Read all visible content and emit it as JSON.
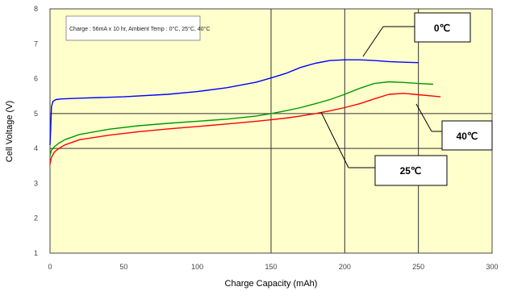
{
  "chart_data": {
    "type": "line",
    "title": "",
    "xlabel": "Charge Capacity (mAh)",
    "ylabel": "Cell Voltage (V)",
    "xlim": [
      0,
      300
    ],
    "ylim": [
      1,
      8
    ],
    "xticks": [
      0,
      50,
      100,
      150,
      200,
      250,
      300
    ],
    "yticks": [
      1,
      2,
      3,
      4,
      5,
      6,
      7,
      8
    ],
    "xtick_labels": [
      "0",
      "50",
      "100",
      "150",
      "200",
      "250",
      "300"
    ],
    "ytick_labels": [
      "1",
      "2",
      "3",
      "4",
      "5",
      "6",
      "7",
      "8"
    ],
    "grid": "major gridlines at x = 150, 200, 250 and y = 4, 5",
    "background": "#ffffcc",
    "note": "Charge : 56mA x 10 hr, Ambient Temp : 0°C, 25°C, 40°C",
    "series": [
      {
        "name": "0℃",
        "color": "#0000ff",
        "x": [
          0,
          0.5,
          1,
          2,
          4,
          8,
          20,
          50,
          80,
          100,
          120,
          140,
          150,
          160,
          170,
          180,
          190,
          200,
          210,
          220,
          230,
          240,
          250
        ],
        "y": [
          4.1,
          4.6,
          5.2,
          5.35,
          5.4,
          5.42,
          5.44,
          5.48,
          5.55,
          5.63,
          5.74,
          5.9,
          6.02,
          6.15,
          6.32,
          6.44,
          6.52,
          6.54,
          6.54,
          6.52,
          6.49,
          6.47,
          6.46
        ]
      },
      {
        "name": "25℃",
        "color": "#009900",
        "x": [
          0,
          1,
          3,
          6,
          10,
          20,
          40,
          60,
          80,
          100,
          120,
          140,
          150,
          160,
          170,
          180,
          190,
          200,
          210,
          220,
          230,
          240,
          250,
          260
        ],
        "y": [
          3.8,
          3.95,
          4.05,
          4.15,
          4.25,
          4.4,
          4.55,
          4.65,
          4.72,
          4.78,
          4.84,
          4.93,
          5.0,
          5.08,
          5.17,
          5.28,
          5.4,
          5.55,
          5.72,
          5.86,
          5.91,
          5.89,
          5.86,
          5.84
        ]
      },
      {
        "name": "40℃",
        "color": "#ff0000",
        "x": [
          0,
          1,
          3,
          6,
          10,
          20,
          40,
          60,
          80,
          100,
          120,
          140,
          150,
          160,
          170,
          180,
          190,
          200,
          210,
          220,
          230,
          240,
          250,
          260,
          265
        ],
        "y": [
          3.55,
          3.75,
          3.9,
          4.0,
          4.1,
          4.25,
          4.38,
          4.48,
          4.56,
          4.63,
          4.7,
          4.78,
          4.82,
          4.87,
          4.93,
          5.0,
          5.08,
          5.17,
          5.28,
          5.42,
          5.55,
          5.58,
          5.54,
          5.5,
          5.48
        ]
      }
    ],
    "callouts": [
      {
        "label": "0℃",
        "series": 0
      },
      {
        "label": "40℃",
        "series": 2
      },
      {
        "label": "25℃",
        "series": 1
      }
    ]
  }
}
